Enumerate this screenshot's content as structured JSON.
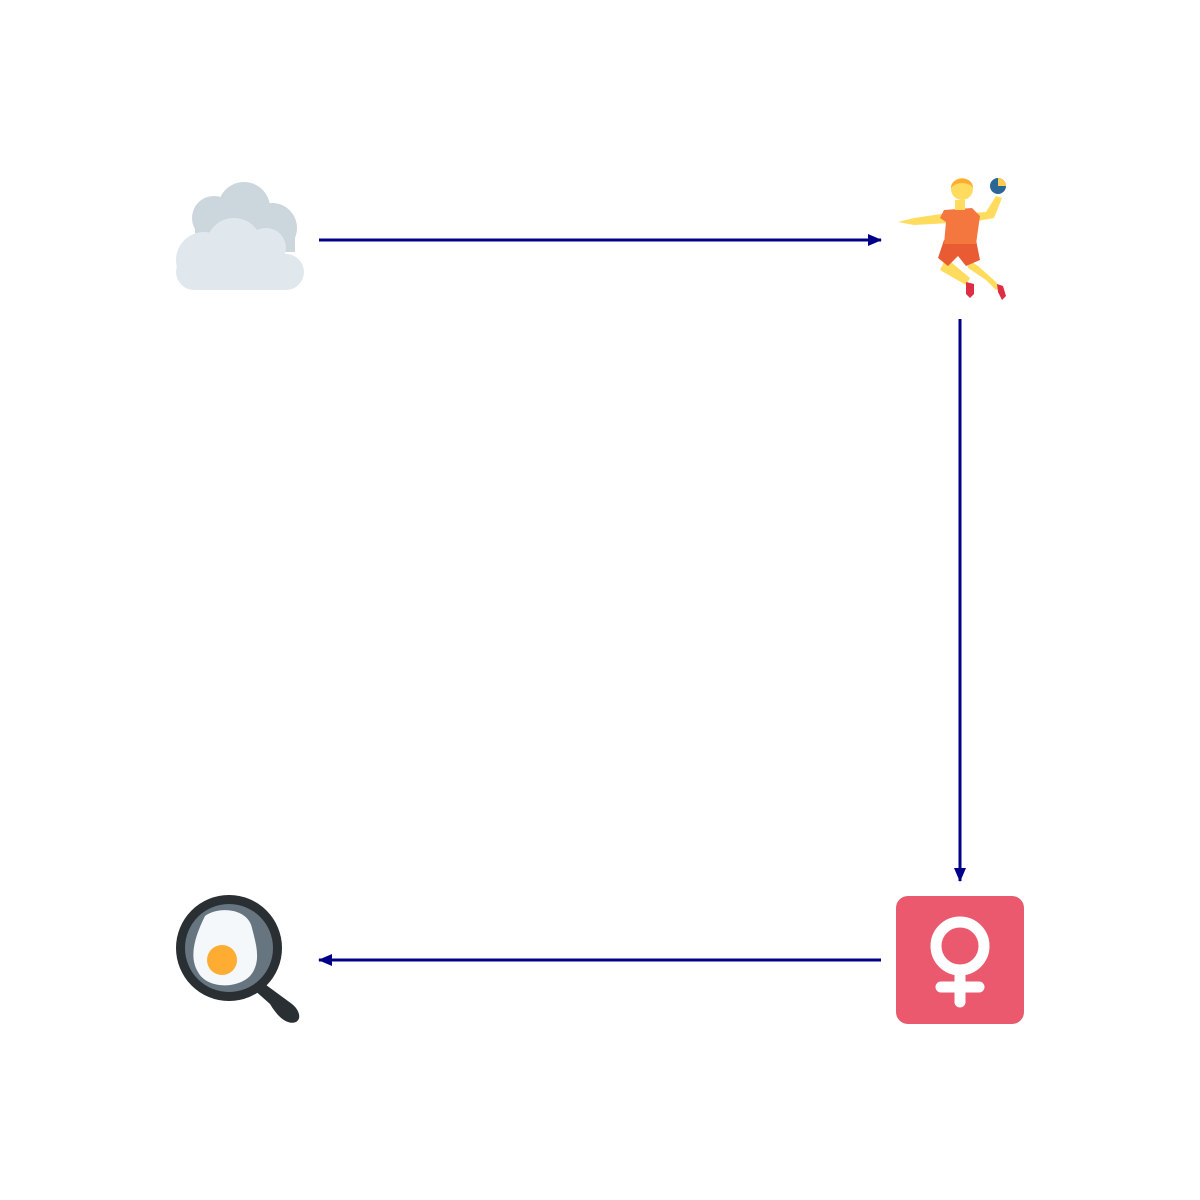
{
  "diagram": {
    "type": "flow-cycle",
    "nodes": [
      {
        "id": "cloud",
        "icon": "cloud-icon"
      },
      {
        "id": "handball",
        "icon": "person-playing-handball-icon"
      },
      {
        "id": "female",
        "icon": "female-sign-icon"
      },
      {
        "id": "egg",
        "icon": "cooking-egg-icon"
      }
    ],
    "edges": [
      {
        "from": "cloud",
        "to": "handball"
      },
      {
        "from": "handball",
        "to": "female"
      },
      {
        "from": "female",
        "to": "egg"
      }
    ],
    "colors": {
      "arrow": "#00008B",
      "cloud_back": "#CCD6DD",
      "cloud_front": "#E1E8ED",
      "skin": "#FFDC5D",
      "hair": "#FFAC33",
      "shirt": "#F4773F",
      "shorts": "#E85B33",
      "ball": "#2A6797",
      "female_bg": "#EA596E",
      "female_symbol": "#FFFFFF",
      "pan": "#292F33",
      "pan_inner": "#66757F",
      "egg_white": "#F5F8FA",
      "yolk": "#FFAC33"
    }
  }
}
